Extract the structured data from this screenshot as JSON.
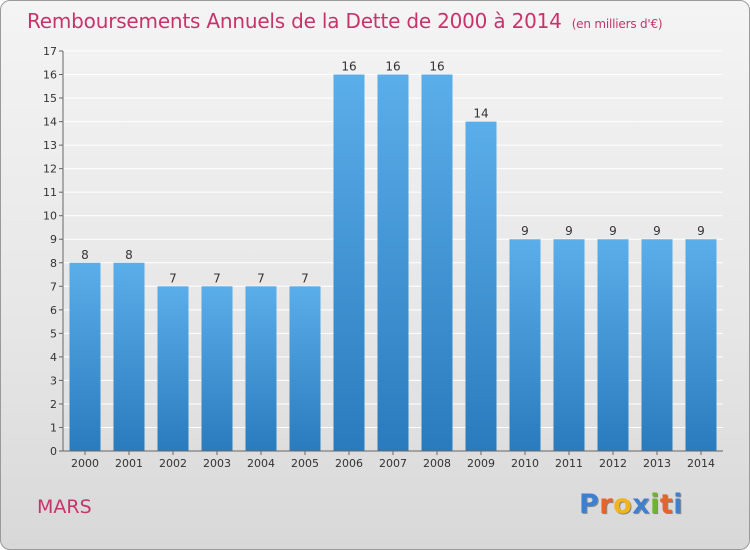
{
  "chart_data": {
    "type": "bar",
    "title": "Remboursements Annuels de la Dette de 2000 à 2014",
    "unit_note": "(en milliers d'€)",
    "categories": [
      "2000",
      "2001",
      "2002",
      "2003",
      "2004",
      "2005",
      "2006",
      "2007",
      "2008",
      "2009",
      "2010",
      "2011",
      "2012",
      "2013",
      "2014"
    ],
    "values": [
      8,
      8,
      7,
      7,
      7,
      7,
      16,
      16,
      16,
      14,
      9,
      9,
      9,
      9,
      9
    ],
    "yticks": [
      "0",
      "1",
      "2",
      "3",
      "4",
      "5",
      "6",
      "7",
      "8",
      "9",
      "10",
      "11",
      "12",
      "13",
      "14",
      "15",
      "16",
      "17"
    ],
    "ylim": [
      0,
      17
    ],
    "xlabel": "",
    "ylabel": "",
    "grid": true,
    "colors": {
      "bar_light": "#5aaee9",
      "bar_dark": "#2a7bbd",
      "grid": "#ffffff",
      "axis": "#666666",
      "text": "#333333"
    }
  },
  "footer": {
    "city": "MARS",
    "logo_letters": [
      "P",
      "r",
      "o",
      "x",
      "i",
      "t",
      "i"
    ],
    "logo_colors": [
      "#3d7fd1",
      "#e8622a",
      "#f0b41c",
      "#3d7fd1",
      "#6cb52d",
      "#e8622a",
      "#3d7fd1"
    ]
  }
}
